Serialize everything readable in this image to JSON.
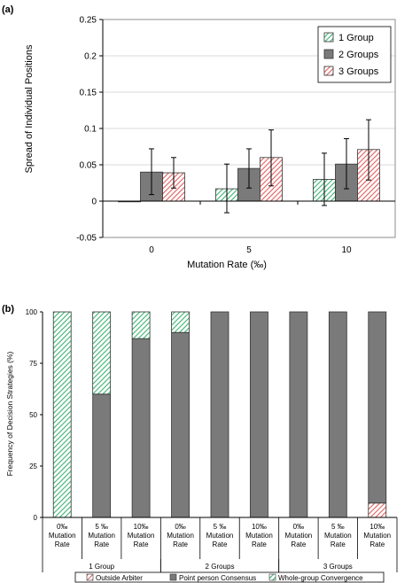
{
  "chart_data": [
    {
      "panel_label": "(a)",
      "type": "bar",
      "xlabel": "Mutation Rate (‰)",
      "ylabel": "Spread of Individual Positions",
      "ylim": [
        -0.05,
        0.25
      ],
      "yticks": [
        -0.05,
        0,
        0.05,
        0.1,
        0.15,
        0.2,
        0.25
      ],
      "categories": [
        "0",
        "5",
        "10"
      ],
      "legend_position": "top-right",
      "series": [
        {
          "name": "1 Group",
          "values": [
            0.0,
            0.017,
            0.03
          ],
          "err_low": [
            0.0,
            -0.016,
            -0.006
          ],
          "err_high": [
            0.0,
            0.051,
            0.066
          ],
          "color": "#3cb371",
          "pattern": "hatch-green"
        },
        {
          "name": "2 Groups",
          "values": [
            0.04,
            0.045,
            0.051
          ],
          "err_low": [
            0.009,
            0.018,
            0.017
          ],
          "err_high": [
            0.072,
            0.072,
            0.086
          ],
          "color": "#7a7a7a",
          "pattern": "solid-gray"
        },
        {
          "name": "3 Groups",
          "values": [
            0.039,
            0.06,
            0.071
          ],
          "err_low": [
            0.018,
            0.021,
            0.029
          ],
          "err_high": [
            0.06,
            0.098,
            0.112
          ],
          "color": "#e06060",
          "pattern": "hatch-red"
        }
      ]
    },
    {
      "panel_label": "(b)",
      "type": "bar",
      "stacked": true,
      "ylabel": "Frequency of Decision Strategies (%)",
      "ylim": [
        0,
        100
      ],
      "yticks": [
        0,
        25,
        50,
        75,
        100
      ],
      "categories": [
        "0‰ Mutation Rate",
        "5 ‰ Mutation Rate",
        "10‰ Mutation Rate",
        "0‰ Mutation Rate",
        "5 ‰ Mutation Rate",
        "10‰ Mutation Rate",
        "0‰ Mutation Rate",
        "5 ‰ Mutation Rate",
        "10‰ Mutation Rate"
      ],
      "category_lines": [
        [
          "0‰",
          "Mutation",
          "Rate"
        ],
        [
          "5 ‰",
          "Mutation",
          "Rate"
        ],
        [
          "10‰",
          "Mutation",
          "Rate"
        ],
        [
          "0‰",
          "Mutation",
          "Rate"
        ],
        [
          "5 ‰",
          "Mutation",
          "Rate"
        ],
        [
          "10‰",
          "Mutation",
          "Rate"
        ],
        [
          "0‰",
          "Mutation",
          "Rate"
        ],
        [
          "5 ‰",
          "Mutation",
          "Rate"
        ],
        [
          "10‰",
          "Mutation",
          "Rate"
        ]
      ],
      "groups": [
        {
          "label": "1 Group",
          "count": 3
        },
        {
          "label": "2 Groups",
          "count": 3
        },
        {
          "label": "3 Groups",
          "count": 3
        }
      ],
      "legend_position": "bottom",
      "series": [
        {
          "name": "Outside Arbiter",
          "values": [
            0,
            0,
            0,
            0,
            0,
            0,
            0,
            0,
            7
          ],
          "color": "#e06060",
          "pattern": "hatch-red"
        },
        {
          "name": "Point person Consensus",
          "values": [
            0,
            60,
            87,
            90,
            100,
            100,
            100,
            100,
            93
          ],
          "color": "#7a7a7a",
          "pattern": "solid-gray"
        },
        {
          "name": "Whole-group Convergence",
          "values": [
            100,
            40,
            13,
            10,
            0,
            0,
            0,
            0,
            0
          ],
          "color": "#3cb371",
          "pattern": "hatch-green"
        }
      ]
    }
  ]
}
